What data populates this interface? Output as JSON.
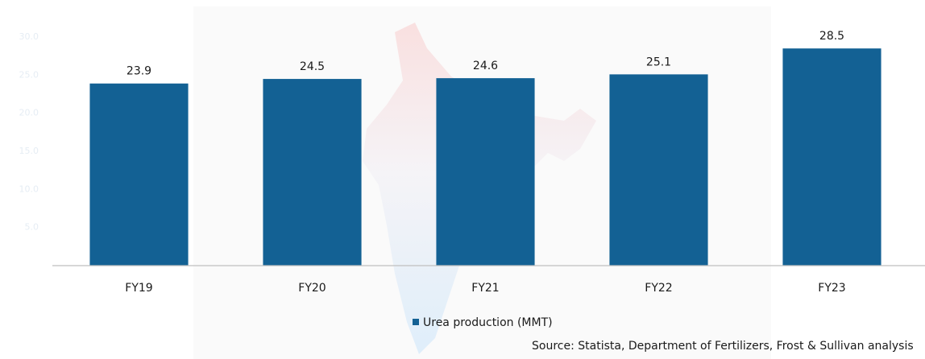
{
  "chart_data": {
    "type": "bar",
    "categories": [
      "FY19",
      "FY20",
      "FY21",
      "FY22",
      "FY23"
    ],
    "series": [
      {
        "name": "Urea production (MMT)",
        "color": "#136194",
        "values": [
          23.9,
          24.5,
          24.6,
          25.1,
          28.5
        ]
      }
    ],
    "ylim": [
      0,
      30
    ],
    "yticks": [
      {
        "value": 5,
        "label": "5.0"
      },
      {
        "value": 10,
        "label": "10.0"
      },
      {
        "value": 15,
        "label": "15.0"
      },
      {
        "value": 20,
        "label": "20.0"
      },
      {
        "value": 25,
        "label": "25.0"
      },
      {
        "value": 30,
        "label": "30.0"
      }
    ],
    "legend": "bottom",
    "source": "Source: Statista, Department of Fertilizers, Frost & Sullivan analysis"
  }
}
